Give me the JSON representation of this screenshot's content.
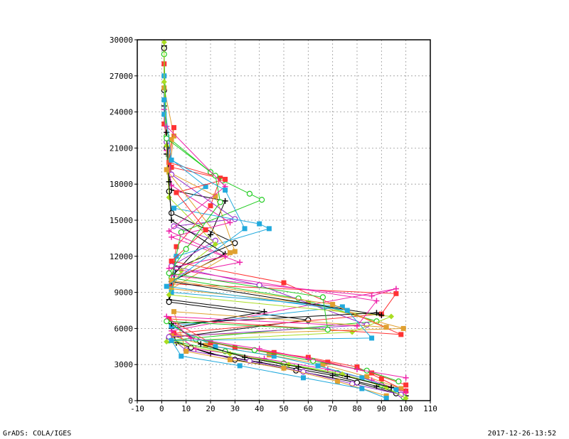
{
  "footer": {
    "left": "GrADS: COLA/IGES",
    "right": "2017-12-26-13:52"
  },
  "chart_data": {
    "type": "line",
    "title": "",
    "xlabel": "",
    "ylabel": "",
    "xlim": [
      -10,
      110
    ],
    "ylim": [
      0,
      30000
    ],
    "x_ticks": [
      -10,
      0,
      10,
      20,
      30,
      40,
      50,
      60,
      70,
      80,
      90,
      100,
      110
    ],
    "y_ticks": [
      0,
      3000,
      6000,
      9000,
      12000,
      15000,
      18000,
      21000,
      24000,
      27000,
      30000
    ],
    "x_tick_labels": [
      "-10",
      "0",
      "10",
      "20",
      "30",
      "40",
      "50",
      "60",
      "70",
      "80",
      "90",
      "100",
      "110"
    ],
    "y_tick_labels": [
      "0",
      "3000",
      "6000",
      "9000",
      "12000",
      "15000",
      "18000",
      "21000",
      "24000",
      "27000",
      "30000"
    ],
    "grid": true,
    "legend": "none",
    "note_series": "many overlapping vertical profiles; values approximated from the figure",
    "series": [
      {
        "color": "#000000",
        "marker": "plus",
        "points": [
          [
            100,
            400
          ],
          [
            88,
            1200
          ],
          [
            70,
            2100
          ],
          [
            40,
            3200
          ],
          [
            20,
            3900
          ],
          [
            6,
            4800
          ],
          [
            4,
            6000
          ],
          [
            42,
            7400
          ],
          [
            3,
            8400
          ],
          [
            5,
            10500
          ],
          [
            20,
            13800
          ],
          [
            26,
            16600
          ],
          [
            4,
            17500
          ],
          [
            2,
            20500
          ],
          [
            1,
            24500
          ],
          [
            1,
            29500
          ]
        ]
      },
      {
        "color": "#000000",
        "marker": "circle",
        "points": [
          [
            96,
            600
          ],
          [
            80,
            1500
          ],
          [
            55,
            2500
          ],
          [
            30,
            3400
          ],
          [
            12,
            4400
          ],
          [
            3,
            5200
          ],
          [
            60,
            6700
          ],
          [
            3,
            8200
          ],
          [
            6,
            11000
          ],
          [
            30,
            13100
          ],
          [
            4,
            15600
          ],
          [
            3,
            17400
          ],
          [
            2,
            21000
          ],
          [
            1,
            25800
          ],
          [
            1,
            29300
          ]
        ]
      },
      {
        "color": "#ff3333",
        "marker": "square",
        "points": [
          [
            100,
            800
          ],
          [
            90,
            1800
          ],
          [
            80,
            2800
          ],
          [
            60,
            3600
          ],
          [
            30,
            4400
          ],
          [
            5,
            5600
          ],
          [
            90,
            7200
          ],
          [
            96,
            8900
          ],
          [
            4,
            9700
          ],
          [
            6,
            12800
          ],
          [
            20,
            16200
          ],
          [
            24,
            18500
          ],
          [
            4,
            19400
          ],
          [
            1,
            23000
          ],
          [
            1,
            28000
          ]
        ]
      },
      {
        "color": "#e0a030",
        "marker": "square",
        "points": [
          [
            98,
            1000
          ],
          [
            84,
            2000
          ],
          [
            66,
            3000
          ],
          [
            44,
            3800
          ],
          [
            18,
            4600
          ],
          [
            4,
            5400
          ],
          [
            99,
            6000
          ],
          [
            60,
            8100
          ],
          [
            4,
            9300
          ],
          [
            30,
            12400
          ],
          [
            22,
            17000
          ],
          [
            3,
            19000
          ],
          [
            5,
            22000
          ],
          [
            1,
            26000
          ]
        ]
      },
      {
        "color": "#22cc22",
        "marker": "circle",
        "points": [
          [
            99,
            300
          ],
          [
            90,
            1300
          ],
          [
            72,
            2300
          ],
          [
            50,
            3100
          ],
          [
            26,
            4100
          ],
          [
            3,
            5000
          ],
          [
            88,
            6600
          ],
          [
            56,
            8500
          ],
          [
            4,
            10200
          ],
          [
            8,
            14000
          ],
          [
            41,
            16700
          ],
          [
            36,
            17200
          ],
          [
            25,
            18300
          ],
          [
            20,
            19000
          ],
          [
            2,
            22000
          ],
          [
            1,
            28800
          ]
        ]
      },
      {
        "color": "#ee22aa",
        "marker": "plus",
        "points": [
          [
            100,
            700
          ],
          [
            86,
            1700
          ],
          [
            68,
            2600
          ],
          [
            42,
            3500
          ],
          [
            14,
            4300
          ],
          [
            4,
            5800
          ],
          [
            96,
            9300
          ],
          [
            86,
            8700
          ],
          [
            4,
            10400
          ],
          [
            32,
            11500
          ],
          [
            4,
            13600
          ],
          [
            28,
            14800
          ],
          [
            4,
            17900
          ],
          [
            2,
            20800
          ],
          [
            1,
            24200
          ]
        ]
      },
      {
        "color": "#9933cc",
        "marker": "circle",
        "points": [
          [
            98,
            500
          ],
          [
            78,
            1400
          ],
          [
            58,
            2400
          ],
          [
            36,
            3300
          ],
          [
            10,
            4200
          ],
          [
            3,
            5300
          ],
          [
            84,
            6300
          ],
          [
            40,
            9600
          ],
          [
            4,
            11200
          ],
          [
            22,
            13300
          ],
          [
            5,
            14500
          ],
          [
            30,
            15100
          ],
          [
            4,
            18800
          ],
          [
            2,
            21500
          ]
        ]
      },
      {
        "color": "#22aadd",
        "marker": "square",
        "points": [
          [
            96,
            900
          ],
          [
            82,
            1900
          ],
          [
            64,
            2900
          ],
          [
            46,
            3700
          ],
          [
            22,
            4500
          ],
          [
            4,
            6200
          ],
          [
            74,
            7800
          ],
          [
            4,
            9000
          ],
          [
            6,
            12000
          ],
          [
            44,
            14300
          ],
          [
            40,
            14700
          ],
          [
            5,
            16000
          ],
          [
            18,
            17800
          ],
          [
            3,
            20200
          ],
          [
            1,
            23800
          ],
          [
            1,
            27000
          ]
        ]
      },
      {
        "color": "#aadd22",
        "marker": "diamond",
        "points": [
          [
            100,
            200
          ],
          [
            92,
            1100
          ],
          [
            74,
            2200
          ],
          [
            52,
            3000
          ],
          [
            28,
            3900
          ],
          [
            2,
            4900
          ],
          [
            78,
            5700
          ],
          [
            94,
            7000
          ],
          [
            3,
            8800
          ],
          [
            8,
            10800
          ],
          [
            22,
            13000
          ],
          [
            3,
            16900
          ],
          [
            2,
            21200
          ],
          [
            1,
            26500
          ],
          [
            1,
            29800
          ]
        ]
      },
      {
        "color": "#000000",
        "marker": "plus",
        "points": [
          [
            94,
            1100
          ],
          [
            76,
            2000
          ],
          [
            56,
            2800
          ],
          [
            34,
            3600
          ],
          [
            16,
            4700
          ],
          [
            4,
            6400
          ],
          [
            88,
            7300
          ],
          [
            90,
            7100
          ],
          [
            4,
            9900
          ],
          [
            26,
            12200
          ],
          [
            4,
            15000
          ],
          [
            3,
            18200
          ],
          [
            2,
            22300
          ]
        ]
      },
      {
        "color": "#ff3333",
        "marker": "square",
        "points": [
          [
            100,
            1300
          ],
          [
            86,
            2300
          ],
          [
            68,
            3200
          ],
          [
            46,
            4000
          ],
          [
            20,
            4800
          ],
          [
            3,
            6800
          ],
          [
            98,
            5500
          ],
          [
            50,
            9800
          ],
          [
            4,
            11600
          ],
          [
            18,
            14200
          ],
          [
            6,
            17300
          ],
          [
            26,
            18400
          ],
          [
            3,
            19800
          ],
          [
            5,
            22700
          ]
        ]
      },
      {
        "color": "#e0a030",
        "marker": "square",
        "points": [
          [
            92,
            400
          ],
          [
            72,
            1600
          ],
          [
            50,
            2700
          ],
          [
            28,
            3400
          ],
          [
            10,
            4100
          ],
          [
            5,
            7400
          ],
          [
            92,
            6100
          ],
          [
            70,
            8000
          ],
          [
            4,
            10000
          ],
          [
            28,
            12300
          ],
          [
            2,
            19200
          ],
          [
            4,
            21700
          ]
        ]
      },
      {
        "color": "#22cc22",
        "marker": "circle",
        "points": [
          [
            97,
            1600
          ],
          [
            84,
            2500
          ],
          [
            62,
            3300
          ],
          [
            38,
            4200
          ],
          [
            14,
            5100
          ],
          [
            2,
            6600
          ],
          [
            68,
            5900
          ],
          [
            66,
            8600
          ],
          [
            3,
            10600
          ],
          [
            10,
            12600
          ],
          [
            24,
            16500
          ],
          [
            22,
            18700
          ],
          [
            2,
            21800
          ]
        ]
      },
      {
        "color": "#ee22aa",
        "marker": "plus",
        "points": [
          [
            100,
            1900
          ],
          [
            80,
            2600
          ],
          [
            60,
            3500
          ],
          [
            40,
            4300
          ],
          [
            12,
            5200
          ],
          [
            2,
            7000
          ],
          [
            80,
            6200
          ],
          [
            88,
            8300
          ],
          [
            3,
            11000
          ],
          [
            26,
            12000
          ],
          [
            3,
            14100
          ],
          [
            26,
            17800
          ],
          [
            2,
            22800
          ]
        ]
      },
      {
        "color": "#22aadd",
        "marker": "square",
        "points": [
          [
            92,
            200
          ],
          [
            82,
            1000
          ],
          [
            58,
            1900
          ],
          [
            32,
            2900
          ],
          [
            8,
            3700
          ],
          [
            4,
            5000
          ],
          [
            86,
            5200
          ],
          [
            76,
            7500
          ],
          [
            2,
            9500
          ],
          [
            34,
            14300
          ],
          [
            26,
            17500
          ],
          [
            4,
            20000
          ],
          [
            1,
            25000
          ]
        ]
      }
    ]
  }
}
